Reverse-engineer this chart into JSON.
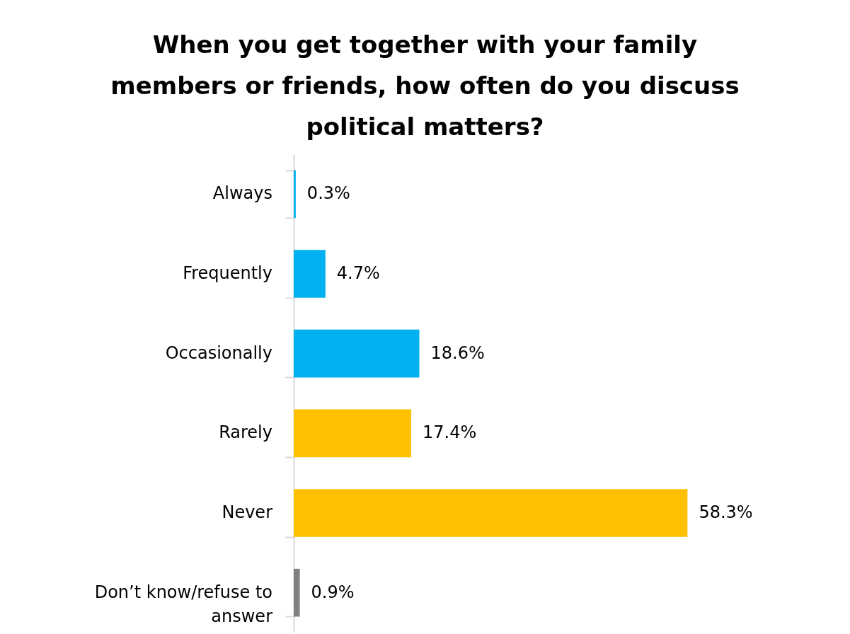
{
  "chart_data": {
    "type": "bar",
    "orientation": "horizontal",
    "title": "When you get together with your family members or friends, how often do you discuss political matters?",
    "categories": [
      "Always",
      "Frequently",
      "Occasionally",
      "Rarely",
      "Never",
      "Don’t know/refuse to answer"
    ],
    "values": [
      0.3,
      4.7,
      18.6,
      17.4,
      58.3,
      0.9
    ],
    "colors": [
      "#00b0f0",
      "#00b0f0",
      "#00b0f0",
      "#ffc000",
      "#ffc000",
      "#7f7f7f"
    ],
    "value_labels": [
      "0.3%",
      "4.7%",
      "18.6%",
      "17.4%",
      "58.3%",
      "0.9%"
    ]
  }
}
